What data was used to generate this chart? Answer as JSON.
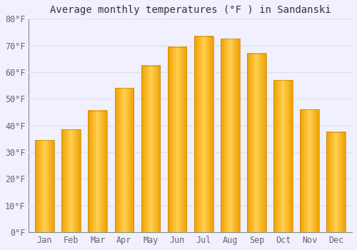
{
  "title": "Average monthly temperatures (°F ) in Sandanski",
  "months": [
    "Jan",
    "Feb",
    "Mar",
    "Apr",
    "May",
    "Jun",
    "Jul",
    "Aug",
    "Sep",
    "Oct",
    "Nov",
    "Dec"
  ],
  "values": [
    34.5,
    38.5,
    45.5,
    54.0,
    62.5,
    69.5,
    73.5,
    72.5,
    67.0,
    57.0,
    46.0,
    37.5
  ],
  "bar_color_dark": "#F0A000",
  "bar_color_light": "#FFD050",
  "bar_edge_color": "#C8850A",
  "ylim": [
    0,
    80
  ],
  "yticks": [
    0,
    10,
    20,
    30,
    40,
    50,
    60,
    70,
    80
  ],
  "ytick_labels": [
    "0°F",
    "10°F",
    "20°F",
    "30°F",
    "40°F",
    "50°F",
    "60°F",
    "70°F",
    "80°F"
  ],
  "background_color": "#F0F0FF",
  "grid_color": "#E0E0EE",
  "title_fontsize": 10,
  "tick_fontsize": 8.5,
  "font_family": "monospace",
  "bar_width": 0.72
}
